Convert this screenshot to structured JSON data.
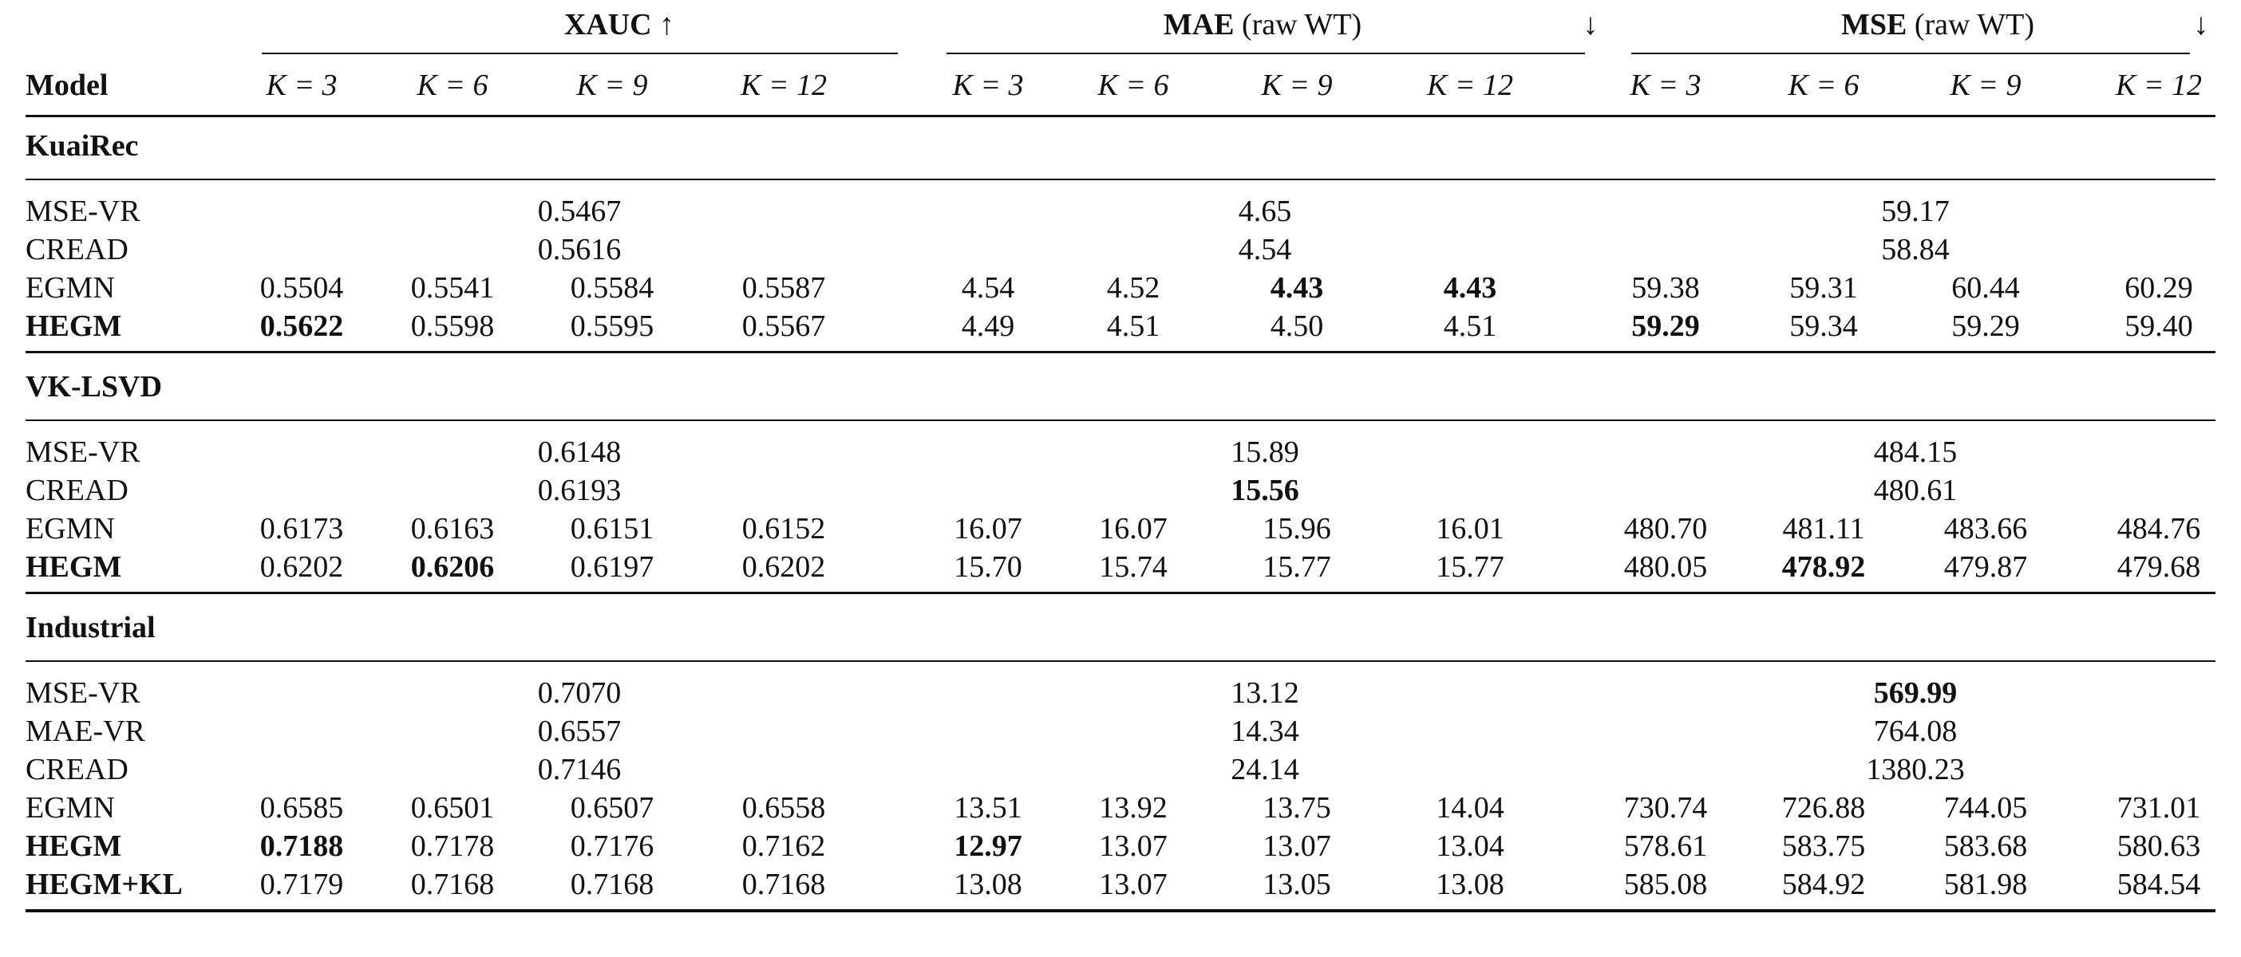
{
  "header": {
    "model_label": "Model",
    "groups": [
      {
        "name": "XAUC",
        "suffix": "",
        "arrow": "↑"
      },
      {
        "name": "MAE",
        "suffix": " (raw WT)",
        "arrow": "↓"
      },
      {
        "name": "MSE",
        "suffix": " (raw WT)",
        "arrow": "↓"
      }
    ],
    "k_labels": [
      "K = 3",
      "K = 6",
      "K = 9",
      "K = 12"
    ]
  },
  "sections": [
    {
      "name": "KuaiRec",
      "rows": [
        {
          "model": "MSE-VR",
          "bold_model": false,
          "spans": [
            "0.5467",
            "4.65",
            "59.17"
          ]
        },
        {
          "model": "CREAD",
          "bold_model": false,
          "spans": [
            "0.5616",
            "4.54",
            "58.84"
          ]
        },
        {
          "model": "EGMN",
          "bold_model": false,
          "values": [
            "0.5504",
            "0.5541",
            "0.5584",
            "0.5587",
            "4.54",
            "4.52",
            "4.43",
            "4.43",
            "59.38",
            "59.31",
            "60.44",
            "60.29"
          ],
          "bold": [
            6,
            7
          ]
        },
        {
          "model": "HEGM",
          "bold_model": true,
          "values": [
            "0.5622",
            "0.5598",
            "0.5595",
            "0.5567",
            "4.49",
            "4.51",
            "4.50",
            "4.51",
            "59.29",
            "59.34",
            "59.29",
            "59.40"
          ],
          "bold": [
            0,
            8
          ]
        }
      ]
    },
    {
      "name": "VK-LSVD",
      "rows": [
        {
          "model": "MSE-VR",
          "bold_model": false,
          "spans": [
            "0.6148",
            "15.89",
            "484.15"
          ]
        },
        {
          "model": "CREAD",
          "bold_model": false,
          "spans": [
            "0.6193",
            "15.56",
            "480.61"
          ],
          "span_bold": [
            1
          ]
        },
        {
          "model": "EGMN",
          "bold_model": false,
          "values": [
            "0.6173",
            "0.6163",
            "0.6151",
            "0.6152",
            "16.07",
            "16.07",
            "15.96",
            "16.01",
            "480.70",
            "481.11",
            "483.66",
            "484.76"
          ],
          "bold": []
        },
        {
          "model": "HEGM",
          "bold_model": true,
          "values": [
            "0.6202",
            "0.6206",
            "0.6197",
            "0.6202",
            "15.70",
            "15.74",
            "15.77",
            "15.77",
            "480.05",
            "478.92",
            "479.87",
            "479.68"
          ],
          "bold": [
            1,
            9
          ]
        }
      ]
    },
    {
      "name": "Industrial",
      "rows": [
        {
          "model": "MSE-VR",
          "bold_model": false,
          "spans": [
            "0.7070",
            "13.12",
            "569.99"
          ],
          "span_bold": [
            2
          ]
        },
        {
          "model": "MAE-VR",
          "bold_model": false,
          "spans": [
            "0.6557",
            "14.34",
            "764.08"
          ]
        },
        {
          "model": "CREAD",
          "bold_model": false,
          "spans": [
            "0.7146",
            "24.14",
            "1380.23"
          ]
        },
        {
          "model": "EGMN",
          "bold_model": false,
          "values": [
            "0.6585",
            "0.6501",
            "0.6507",
            "0.6558",
            "13.51",
            "13.92",
            "13.75",
            "14.04",
            "730.74",
            "726.88",
            "744.05",
            "731.01"
          ],
          "bold": []
        },
        {
          "model": "HEGM",
          "bold_model": true,
          "values": [
            "0.7188",
            "0.7178",
            "0.7176",
            "0.7162",
            "12.97",
            "13.07",
            "13.07",
            "13.04",
            "578.61",
            "583.75",
            "583.68",
            "580.63"
          ],
          "bold": [
            0,
            4
          ]
        },
        {
          "model": "HEGM+KL",
          "bold_model": true,
          "values": [
            "0.7179",
            "0.7168",
            "0.7168",
            "0.7168",
            "13.08",
            "13.07",
            "13.05",
            "13.08",
            "585.08",
            "584.92",
            "581.98",
            "584.54"
          ],
          "bold": []
        }
      ]
    }
  ]
}
